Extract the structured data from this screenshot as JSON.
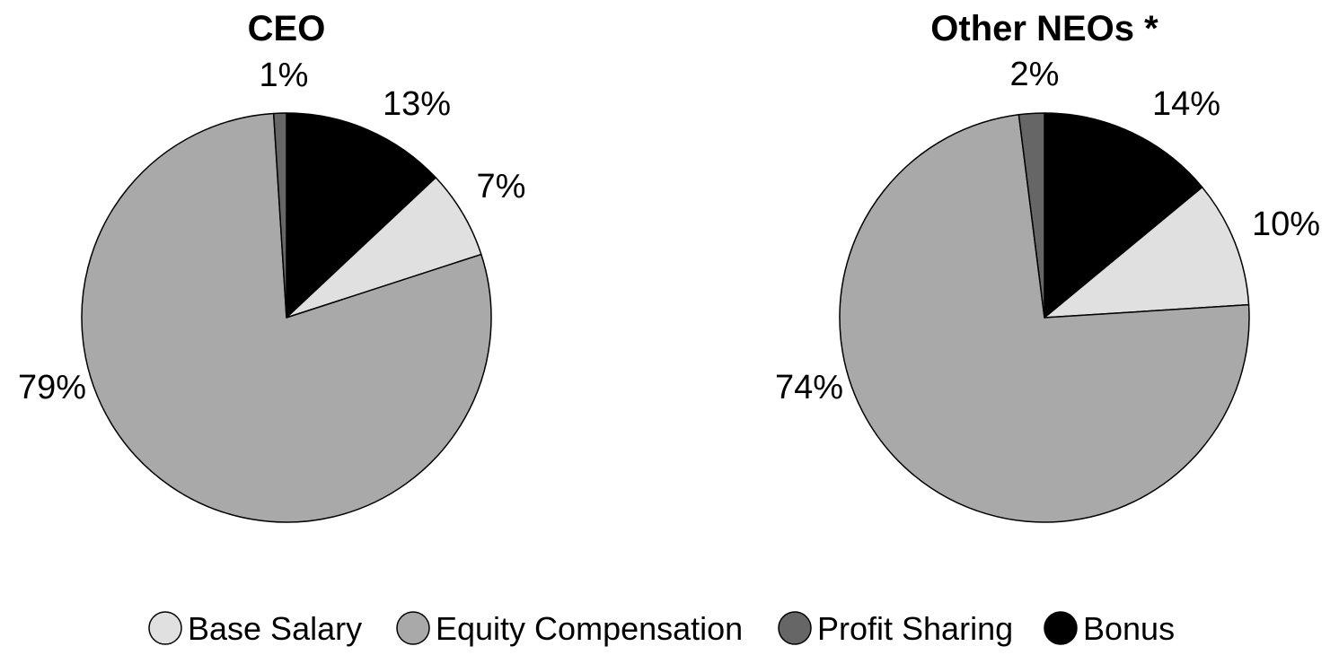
{
  "chart_data": [
    {
      "type": "pie",
      "title": "CEO",
      "slices": [
        {
          "category": "Bonus",
          "value": 13,
          "label": "13%"
        },
        {
          "category": "Base Salary",
          "value": 7,
          "label": "7%"
        },
        {
          "category": "Equity Compensation",
          "value": 79,
          "label": "79%"
        },
        {
          "category": "Profit Sharing",
          "value": 1,
          "label": "1%"
        }
      ]
    },
    {
      "type": "pie",
      "title": "Other NEOs *",
      "slices": [
        {
          "category": "Bonus",
          "value": 14,
          "label": "14%"
        },
        {
          "category": "Base Salary",
          "value": 10,
          "label": "10%"
        },
        {
          "category": "Equity Compensation",
          "value": 74,
          "label": "74%"
        },
        {
          "category": "Profit Sharing",
          "value": 2,
          "label": "2%"
        }
      ]
    }
  ],
  "legend": {
    "placement": "bottom",
    "items": [
      {
        "label": "Base Salary",
        "color": "#e0e0e0"
      },
      {
        "label": "Equity Compensation",
        "color": "#a9a9a9"
      },
      {
        "label": "Profit Sharing",
        "color": "#666666"
      },
      {
        "label": "Bonus",
        "color": "#000000"
      }
    ]
  },
  "colors": {
    "Base Salary": "#e0e0e0",
    "Equity Compensation": "#a9a9a9",
    "Profit Sharing": "#666666",
    "Bonus": "#000000"
  }
}
